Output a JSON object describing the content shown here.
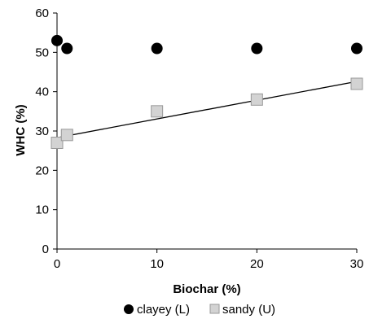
{
  "chart_data": {
    "type": "scatter",
    "xlabel": "Biochar (%)",
    "ylabel": "WHC (%)",
    "xlim": [
      0,
      30
    ],
    "ylim": [
      0,
      60
    ],
    "xticks": [
      0,
      10,
      20,
      30
    ],
    "yticks": [
      0,
      10,
      20,
      30,
      40,
      50,
      60
    ],
    "grid": false,
    "legend_position": "bottom",
    "series": [
      {
        "name": "clayey (L)",
        "marker": "circle",
        "color": "#000000",
        "x": [
          0,
          1,
          10,
          20,
          30
        ],
        "y": [
          53,
          51,
          51,
          51,
          51
        ]
      },
      {
        "name": "sandy (U)",
        "marker": "square",
        "color": "#d3d3d3",
        "x": [
          0,
          1,
          10,
          20,
          30
        ],
        "y": [
          27,
          29,
          35,
          38,
          42
        ],
        "trendline": {
          "type": "linear",
          "from": [
            0,
            28.3
          ],
          "to": [
            30,
            42.6
          ]
        }
      }
    ]
  }
}
